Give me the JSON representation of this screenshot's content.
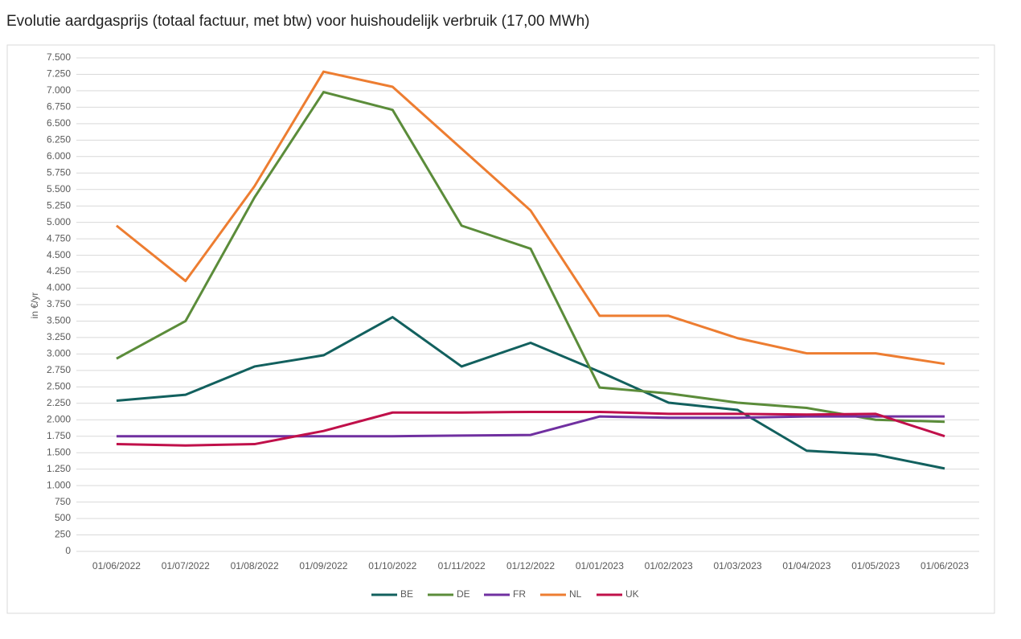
{
  "chart_data": {
    "type": "line",
    "title": "Evolutie aardgasprijs (totaal factuur, met btw) voor huishoudelijk verbruik (17,00 MWh)",
    "y_label": "in €/yr",
    "categories": [
      "01/06/2022",
      "01/07/2022",
      "01/08/2022",
      "01/09/2022",
      "01/10/2022",
      "01/11/2022",
      "01/12/2022",
      "01/01/2023",
      "01/02/2023",
      "01/03/2023",
      "01/04/2023",
      "01/05/2023",
      "01/06/2023"
    ],
    "series": [
      {
        "name": "BE",
        "color": "#12605e",
        "values": [
          2290,
          2380,
          2810,
          2980,
          3560,
          2810,
          3170,
          2730,
          2260,
          2150,
          1530,
          1470,
          1260
        ]
      },
      {
        "name": "DE",
        "color": "#5b8c3a",
        "values": [
          2930,
          3500,
          5380,
          6980,
          6710,
          4950,
          4600,
          2490,
          2400,
          2260,
          2180,
          2000,
          1970
        ]
      },
      {
        "name": "FR",
        "color": "#7030a0",
        "values": [
          1750,
          1750,
          1750,
          1750,
          1750,
          1760,
          1770,
          2050,
          2030,
          2030,
          2050,
          2050,
          2050
        ]
      },
      {
        "name": "NL",
        "color": "#ed7d31",
        "values": [
          4950,
          4110,
          5550,
          7290,
          7060,
          6120,
          5180,
          3580,
          3580,
          3240,
          3010,
          3010,
          2850
        ]
      },
      {
        "name": "UK",
        "color": "#c0104a",
        "values": [
          1630,
          1610,
          1630,
          1830,
          2110,
          2110,
          2120,
          2120,
          2090,
          2090,
          2080,
          2090,
          1750
        ]
      }
    ],
    "ylim": [
      0,
      7500
    ],
    "yticks": [
      0,
      250,
      500,
      750,
      {
        "value": 1000,
        "label": "1.000"
      },
      {
        "value": 1250,
        "label": "1.250"
      },
      {
        "value": 1500,
        "label": "1.500"
      },
      {
        "value": 1750,
        "label": "1.750"
      },
      {
        "value": 2000,
        "label": "2.000"
      },
      {
        "value": 2250,
        "label": "2.250"
      },
      {
        "value": 2500,
        "label": "2.500"
      },
      {
        "value": 2750,
        "label": "2.750"
      },
      {
        "value": 3000,
        "label": "3.000"
      },
      {
        "value": 3250,
        "label": "3.250"
      },
      {
        "value": 3500,
        "label": "3.500"
      },
      {
        "value": 3750,
        "label": "3.750"
      },
      {
        "value": 4000,
        "label": "4.000"
      },
      {
        "value": 4250,
        "label": "4.250"
      },
      {
        "value": 4500,
        "label": "4.500"
      },
      {
        "value": 4750,
        "label": "4.750"
      },
      {
        "value": 5000,
        "label": "5.000"
      },
      {
        "value": 5250,
        "label": "5.250"
      },
      {
        "value": 5500,
        "label": "5.500"
      },
      {
        "value": 5750,
        "label": "5.750"
      },
      {
        "value": 6000,
        "label": "6.000"
      },
      {
        "value": 6250,
        "label": "6.250"
      },
      {
        "value": 6500,
        "label": "6.500"
      },
      {
        "value": 6750,
        "label": "6.750"
      },
      {
        "value": 7000,
        "label": "7.000"
      },
      {
        "value": 7250,
        "label": "7.250"
      },
      {
        "value": 7500,
        "label": "7.500"
      }
    ],
    "grid": true,
    "legend": "bottom"
  }
}
